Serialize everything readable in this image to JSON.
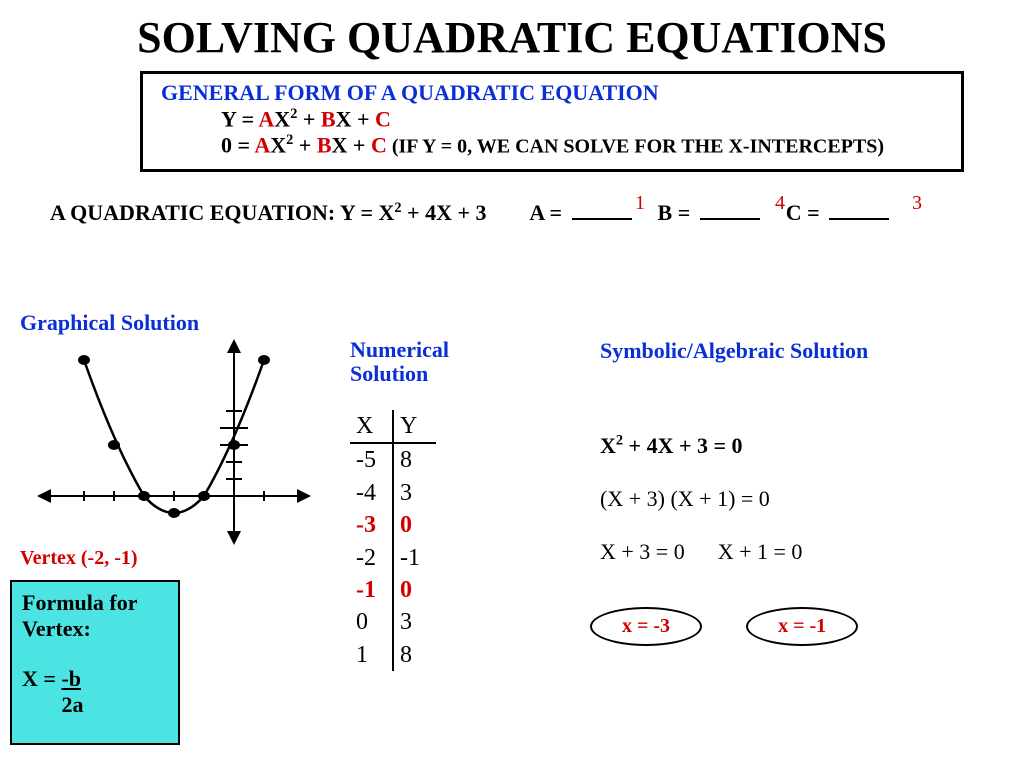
{
  "title": "SOLVING QUADRATIC EQUATIONS",
  "general": {
    "heading": "GENERAL FORM OF A QUADRATIC EQUATION",
    "line1_pre": "Y = ",
    "line2_pre": "0 = ",
    "a": "A",
    "b": "B",
    "c": "C",
    "x2": "X",
    "xplus": "X + ",
    "suffix": "  (IF Y = 0, WE CAN SOLVE FOR THE X-INTERCEPTS)"
  },
  "example": {
    "label": "A QUADRATIC EQUATION:  Y = X",
    "rest": " + 4X + 3",
    "A": "A =",
    "B": "B =",
    "C": "C =",
    "ansA": "1",
    "ansB": "4",
    "ansC": "3"
  },
  "labels": {
    "graphical": "Graphical Solution",
    "numerical": "Numerical Solution",
    "symbolic": "Symbolic/Algebraic Solution"
  },
  "graph": {
    "vertex": "Vertex (-2, -1)",
    "points": [
      {
        "gx": -5,
        "gy": 8
      },
      {
        "gx": -4,
        "gy": 3
      },
      {
        "gx": -3,
        "gy": 0
      },
      {
        "gx": -2,
        "gy": -1
      },
      {
        "gx": -1,
        "gy": 0
      },
      {
        "gx": 0,
        "gy": 3
      },
      {
        "gx": 1,
        "gy": 8
      }
    ],
    "xrange": [
      -6,
      3
    ],
    "yrange": [
      -2,
      9
    ],
    "colors": {
      "axis": "#000000",
      "curve": "#000000",
      "point": "#000000"
    }
  },
  "formula": {
    "title": "Formula for Vertex:",
    "lhs": "X = ",
    "num": "-b",
    "den": "  2a"
  },
  "table": {
    "headers": [
      "X",
      "Y"
    ],
    "rows": [
      {
        "x": "-5",
        "y": "8",
        "red": false
      },
      {
        "x": "-4",
        "y": "3",
        "red": false
      },
      {
        "x": "-3",
        "y": "0",
        "red": true
      },
      {
        "x": "-2",
        "y": "-1",
        "red": false
      },
      {
        "x": "-1",
        "y": "0",
        "red": true
      },
      {
        "x": "0",
        "y": "3",
        "red": false
      },
      {
        "x": "1",
        "y": "8",
        "red": false
      }
    ]
  },
  "algebra": {
    "line1_a": "X",
    "line1_b": " + 4X + 3 = 0",
    "line2": "(X + 3) (X + 1) = 0",
    "line3a": "X + 3  = 0",
    "line3b": "X + 1 = 0",
    "sol1": "x = -3",
    "sol2": "x = -1"
  }
}
